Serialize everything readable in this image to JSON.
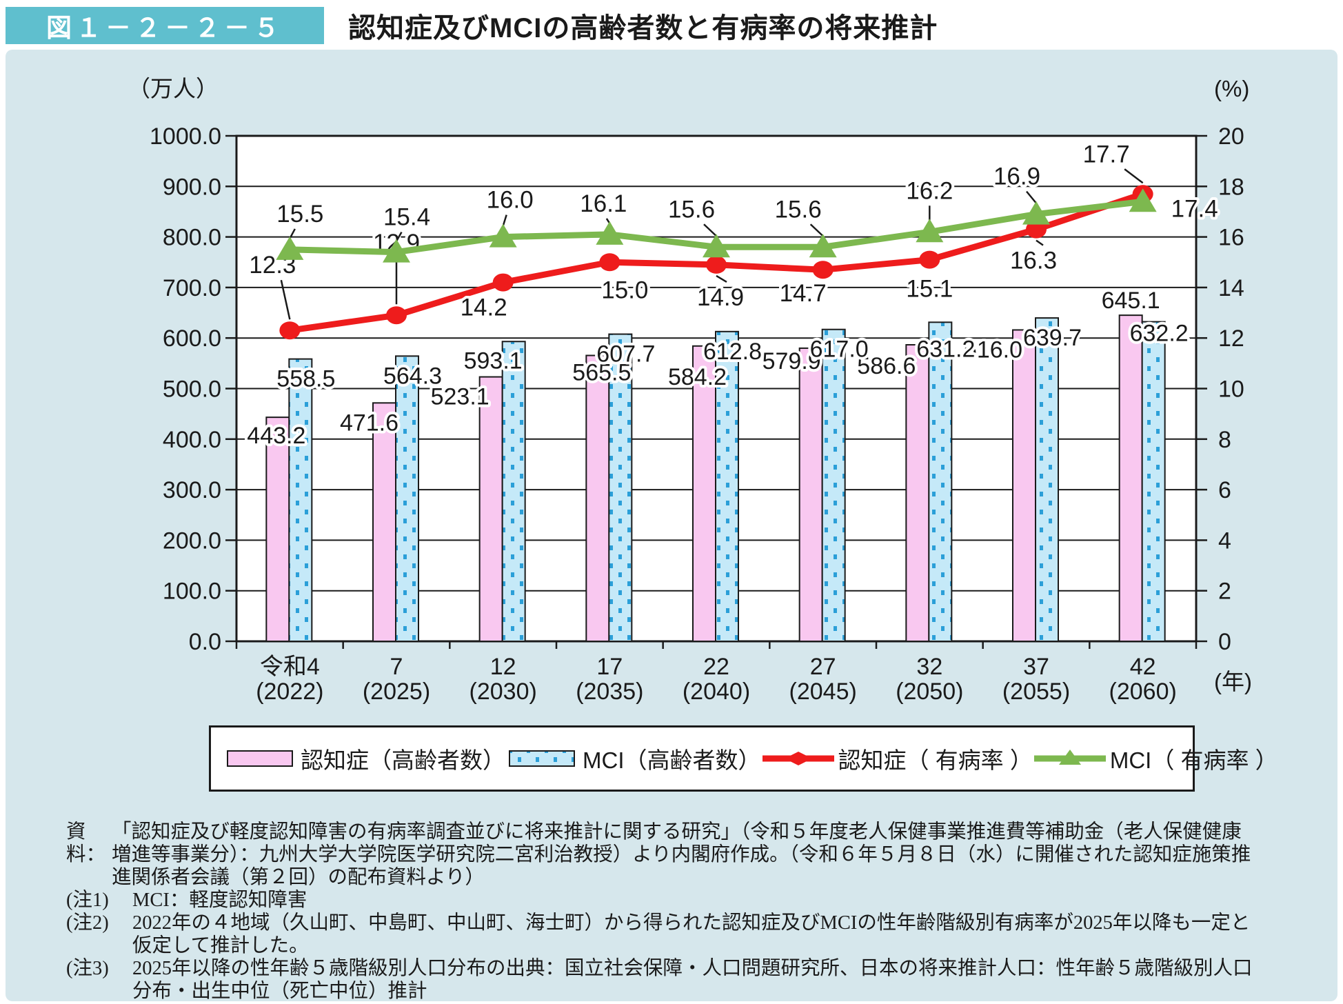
{
  "figure": {
    "tag": "図１－２－２－５",
    "title": "認知症及びMCIの高齢者数と有病率の将来推計"
  },
  "chart_data": {
    "type": "bar",
    "combo": "bar+line, dual axis",
    "title": "認知症及びMCIの高齢者数と有病率の将来推計",
    "categories": [
      "令和4",
      "7",
      "12",
      "17",
      "22",
      "27",
      "32",
      "37",
      "42"
    ],
    "category_years": [
      "(2022)",
      "(2025)",
      "(2030)",
      "(2035)",
      "(2040)",
      "(2045)",
      "(2050)",
      "(2055)",
      "(2060)"
    ],
    "x_axis_unit": "(年)",
    "left_axis": {
      "unit": "（万人）",
      "min": 0,
      "max": 1000,
      "step": 100
    },
    "right_axis": {
      "unit": "(%)",
      "min": 0,
      "max": 20,
      "step": 2
    },
    "grid": true,
    "legend_position": "bottom",
    "series": [
      {
        "name": "認知症（高齢者数）",
        "type": "bar",
        "axis": "left",
        "color": "#f9c8f0",
        "values": [
          443.2,
          471.6,
          523.1,
          565.5,
          584.2,
          579.9,
          586.6,
          616.0,
          645.1
        ]
      },
      {
        "name": "MCI（高齢者数）",
        "type": "bar",
        "axis": "left",
        "color": "#c5e9f8",
        "dot_color": "#2b9fd8",
        "pattern": "dotted",
        "values": [
          558.5,
          564.3,
          593.1,
          607.7,
          612.8,
          617.0,
          631.2,
          639.7,
          632.2
        ]
      },
      {
        "name": "認知症（ 有病率 ）",
        "type": "line",
        "axis": "right",
        "color": "#ee1c1c",
        "marker": "circle",
        "values": [
          12.3,
          12.9,
          14.2,
          15.0,
          14.9,
          14.7,
          15.1,
          16.3,
          17.7
        ]
      },
      {
        "name": "MCI（ 有病率 ）",
        "type": "line",
        "axis": "right",
        "color": "#7db84f",
        "marker": "triangle",
        "values": [
          15.5,
          15.4,
          16.0,
          16.1,
          15.6,
          15.6,
          16.2,
          16.9,
          17.4
        ]
      }
    ]
  },
  "notes": [
    {
      "label": "資料：",
      "text": "「認知症及び軽度認知障害の有病率調査並びに将来推計に関する研究」（令和５年度老人保健事業推進費等補助金（老人保健健康増進等事業分）：九州大学大学院医学研究院二宮利治教授）より内閣府作成。（令和６年５月８日（水）に開催された認知症施策推進関係者会議（第２回）の配布資料より）"
    },
    {
      "label": "(注1)",
      "text": "MCI：軽度認知障害"
    },
    {
      "label": "(注2)",
      "text": "2022年の４地域（久山町、中島町、中山町、海士町）から得られた認知症及びMCIの性年齢階級別有病率が2025年以降も一定と仮定して推計した。"
    },
    {
      "label": "(注3)",
      "text": "2025年以降の性年齢５歳階級別人口分布の出典：国立社会保障・人口問題研究所、日本の将来推計人口：性年齢５歳階級別人口分布・出生中位（死亡中位）推計"
    }
  ],
  "colors": {
    "panel_bg": "#d6e7ec",
    "badge_bg": "#5fbfce",
    "plot_bg": "#ffffff",
    "grid": "#1a1a1a",
    "text": "#1a1a1a"
  }
}
